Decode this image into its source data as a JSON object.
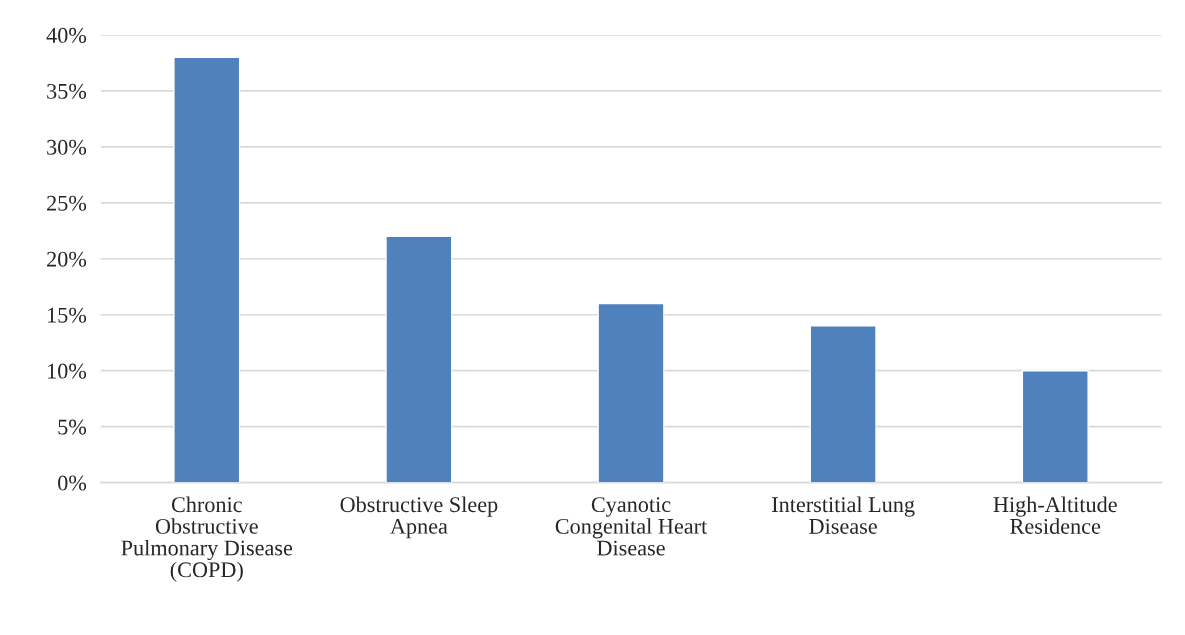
{
  "chart_data": {
    "type": "bar",
    "categories": [
      "Chronic Obstructive Pulmonary Disease (COPD)",
      "Obstructive Sleep Apnea",
      "Cyanotic Congenital Heart Disease",
      "Interstitial Lung Disease",
      "High-Altitude Residence"
    ],
    "values": [
      38,
      22,
      16,
      14,
      10
    ],
    "color": "#4f81bd",
    "ylim": [
      0,
      40
    ],
    "yticks": [
      {
        "value": 0,
        "label": "0%"
      },
      {
        "value": 5,
        "label": "5%"
      },
      {
        "value": 10,
        "label": "10%"
      },
      {
        "value": 15,
        "label": "15%"
      },
      {
        "value": 20,
        "label": "20%"
      },
      {
        "value": 25,
        "label": "25%"
      },
      {
        "value": 30,
        "label": "30%"
      },
      {
        "value": 35,
        "label": "35%"
      },
      {
        "value": 40,
        "label": "40%"
      }
    ],
    "grid": "y",
    "legend": false
  }
}
